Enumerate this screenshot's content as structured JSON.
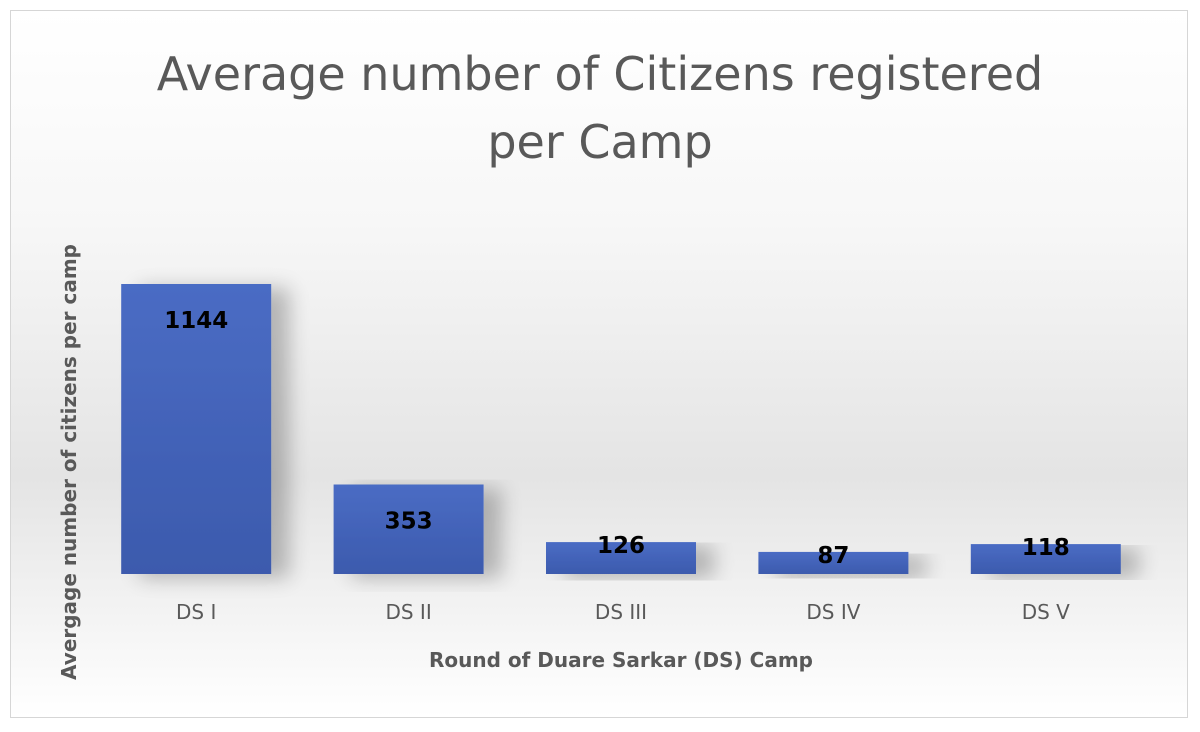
{
  "chart_data": {
    "type": "bar",
    "title": "Average number of Citizens registered per Camp",
    "title_lines": [
      "Average number of Citizens registered",
      "per Camp"
    ],
    "categories": [
      "DS I",
      "DS II",
      "DS III",
      "DS IV",
      "DS V"
    ],
    "values": [
      1144,
      353,
      126,
      87,
      118
    ],
    "xlabel": "Round of Duare Sarkar (DS) Camp",
    "ylabel": "Avergage number of citizens per camp",
    "ylim": [
      0,
      1144
    ],
    "grid": false,
    "legend": "none",
    "data_labels": true,
    "bar_color": "#4A6CC4",
    "bar_color_dark": "#3C5AAD"
  }
}
